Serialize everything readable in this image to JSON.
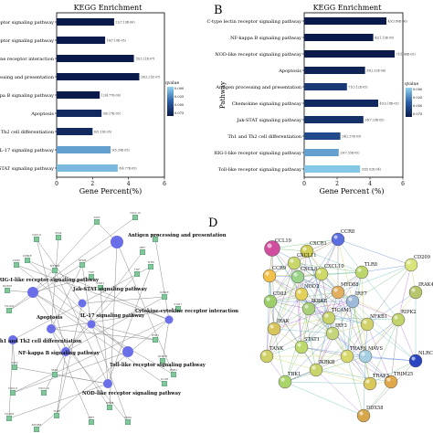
{
  "panel_labels": {
    "b": "B",
    "d": "D"
  },
  "colors": {
    "bar_dark": "#0b1950",
    "bar_mid": "#2d5fa8",
    "bar_light": "#7fc9e6",
    "net_node": "#6a6ee8",
    "net_leaf": "#7fc89a",
    "net_edge": "#8a8a8a"
  },
  "chart_data": [
    {
      "type": "bar",
      "orientation": "horizontal",
      "title": "KEGG Enrichment",
      "xlabel": "Gene Percent(%)",
      "ylabel": "",
      "xlim": [
        0,
        6
      ],
      "xticks": [
        "0",
        "2",
        "4",
        "6"
      ],
      "legend_title": "qvalue",
      "legend_ticks": [
        "0.000",
        "0.025",
        "0.050",
        "0.075"
      ],
      "categories": [
        "Toll-like receptor signaling pathway",
        "NOD-like receptor signaling pathway",
        "Cytokine-cytokine receptor interaction",
        "Antigen processing and presentation",
        "NF-kappa B signaling pathway",
        "Apoptosis",
        "Th1 and Th2 cell differentiation",
        "IL-17 signaling pathway",
        "Jak-STAT signaling pathway"
      ],
      "values": [
        3.2,
        2.7,
        4.3,
        4.6,
        2.4,
        2.5,
        2.0,
        3.0,
        3.4
      ],
      "qvalues": [
        0.0,
        0.0,
        0.0,
        0.0,
        0.0,
        0.01,
        0.01,
        0.07,
        0.08
      ],
      "labels": [
        "22(7.19E-06)",
        "16(7.10E-05)",
        "15(3.21E-07)",
        "16(3.21E-07)",
        "12(4.77E-06)",
        "9(6.17E-05)",
        "6(5.31E-05)",
        "9(5.39E-05)",
        "8(4.77E-05)"
      ]
    },
    {
      "type": "bar",
      "orientation": "horizontal",
      "title": "KEGG Enrichment",
      "xlabel": "Gene Percent (%)",
      "ylabel": "Pathway",
      "xlim": [
        0,
        6
      ],
      "xticks": [
        "0",
        "2",
        "4",
        "6"
      ],
      "legend_title": "qvalue",
      "legend_ticks": [
        "0.000",
        "0.025",
        "0.050",
        "0.075"
      ],
      "categories": [
        "C-type lectin receptor signaling pathway",
        "NF-kappa B signaling pathway",
        "NOD-like receptor signaling pathway",
        "Apoptosis",
        "Antigen processing and presentation",
        "Chemokine signaling pathway",
        "Jak-STAT signaling pathway",
        "Th1 and Th2 cell differentiation",
        "RIG-I-like receptor signaling pathway",
        "Toll-like receptor signaling pathway"
      ],
      "values": [
        5.0,
        4.2,
        5.5,
        3.7,
        2.6,
        4.5,
        3.6,
        2.2,
        2.1,
        3.4
      ],
      "qvalues": [
        0.0,
        0.0,
        0.0,
        0.005,
        0.02,
        0.01,
        0.015,
        0.03,
        0.07,
        0.085
      ],
      "labels": [
        "43(3.80E-06)",
        "42(1.19E-05)",
        "71(1.46E-05)",
        "39(2.92E-06)",
        "71(3.12E-05)",
        "43(3.18E-05)",
        "28(7.29E-05)",
        "24(2.37E-05)",
        "29(7.33E-05)",
        "33(5.02E-04)"
      ]
    },
    {
      "type": "network",
      "hubs": [
        "Antigen processing and presentation",
        "RIG-I-like receptor signaling pathway",
        "Jak-STAT signaling pathway",
        "Apoptosis",
        "IL-17 signaling pathway",
        "Cytokine-cytokine receptor interaction",
        "Th1 and Th2 cell differentiation",
        "NF-kappa B signaling pathway",
        "Toll-like receptor signaling pathway",
        "NOD-like receptor signaling pathway"
      ],
      "genes": [
        "TAP2",
        "CXCL10",
        "CXCL9",
        "IRAK",
        "NFKB",
        "IL12B",
        "TLR8",
        "IRF7",
        "CD80",
        "MYD88",
        "TICAM",
        "TNF",
        "IKBKE",
        "STAT1",
        "IFIH1",
        "DDX58"
      ]
    },
    {
      "type": "network",
      "genes": [
        "CXCR1",
        "CCL19",
        "CCR8",
        "CXCL11",
        "CD209",
        "CCR9",
        "CXCL8",
        "TLR8",
        "CXCL10",
        "IRAK4",
        "CD83",
        "MYD88",
        "IKBKE",
        "NOD2",
        "TICAM1",
        "IRF7",
        "IRAK",
        "NFKB1",
        "TRIM25",
        "STAT1",
        "MAVS",
        "IRF3",
        "NLRC",
        "TRAF3",
        "IKBKB",
        "DDX58",
        "TBK1",
        "RIPK2",
        "TRAF6",
        "TANK"
      ]
    }
  ]
}
